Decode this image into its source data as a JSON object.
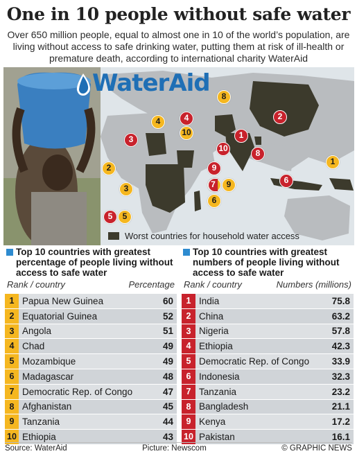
{
  "header": {
    "title": "One in 10 people without safe water",
    "intro": "Over 650 million people, equal to almost one in 10 of the world’s population, are living without access to safe drinking water, putting them at risk of ill-health or premature death, according to international charity WaterAid"
  },
  "logo": {
    "text": "WaterAid",
    "color": "#1f6fb5"
  },
  "map": {
    "legend": "Worst countries for household water access",
    "marker_colors": {
      "percentage": "#f5b720",
      "numbers": "#c8222c"
    },
    "percentage_markers": [
      "1",
      "2",
      "3",
      "4",
      "5",
      "6",
      "7",
      "8",
      "9",
      "10"
    ],
    "numbers_markers": [
      "1",
      "2",
      "3",
      "4",
      "5",
      "6",
      "7",
      "8",
      "9",
      "10"
    ]
  },
  "left_table": {
    "heading": "Top 10 countries with greatest percentage of people living without access to safe water",
    "col_rank": "Rank / country",
    "col_value": "Percentage",
    "rows": [
      {
        "rank": "1",
        "country": "Papua New Guinea",
        "value": "60"
      },
      {
        "rank": "2",
        "country": "Equatorial Guinea",
        "value": "52"
      },
      {
        "rank": "3",
        "country": "Angola",
        "value": "51"
      },
      {
        "rank": "4",
        "country": "Chad",
        "value": "49"
      },
      {
        "rank": "5",
        "country": "Mozambique",
        "value": "49"
      },
      {
        "rank": "6",
        "country": "Madagascar",
        "value": "48"
      },
      {
        "rank": "7",
        "country": "Democratic Rep. of Congo",
        "value": "47"
      },
      {
        "rank": "8",
        "country": "Afghanistan",
        "value": "45"
      },
      {
        "rank": "9",
        "country": "Tanzania",
        "value": "44"
      },
      {
        "rank": "10",
        "country": "Ethiopia",
        "value": "43"
      }
    ]
  },
  "right_table": {
    "heading": "Top 10 countries with greatest numbers of people living without access to safe water",
    "col_rank": "Rank / country",
    "col_value": "Numbers (millions)",
    "rows": [
      {
        "rank": "1",
        "country": "India",
        "value": "75.8"
      },
      {
        "rank": "2",
        "country": "China",
        "value": "63.2"
      },
      {
        "rank": "3",
        "country": "Nigeria",
        "value": "57.8"
      },
      {
        "rank": "4",
        "country": "Ethiopia",
        "value": "42.3"
      },
      {
        "rank": "5",
        "country": "Democratic Rep. of Congo",
        "value": "33.9"
      },
      {
        "rank": "6",
        "country": "Indonesia",
        "value": "32.3"
      },
      {
        "rank": "7",
        "country": "Tanzania",
        "value": "23.2"
      },
      {
        "rank": "8",
        "country": "Bangladesh",
        "value": "21.1"
      },
      {
        "rank": "9",
        "country": "Kenya",
        "value": "17.2"
      },
      {
        "rank": "10",
        "country": "Pakistan",
        "value": "16.1"
      }
    ]
  },
  "footer": {
    "source": "Source: WaterAid",
    "picture": "Picture: Newscom",
    "credit": "© GRAPHIC NEWS"
  }
}
